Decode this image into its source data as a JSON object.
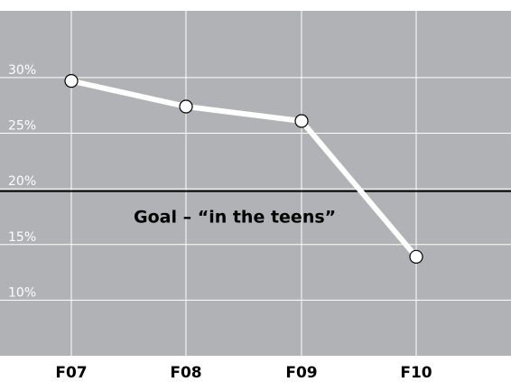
{
  "chart_data": {
    "type": "line",
    "categories": [
      "F07",
      "F08",
      "F09",
      "F10"
    ],
    "series": [
      {
        "values": [
          29.7,
          27.4,
          26.1,
          13.9
        ]
      }
    ],
    "ylim": [
      5,
      36
    ],
    "yticks": [
      {
        "value": 30,
        "label": "30%"
      },
      {
        "value": 25,
        "label": "25%"
      },
      {
        "value": 20,
        "label": "20%"
      },
      {
        "value": 15,
        "label": "15%"
      },
      {
        "value": 10,
        "label": "10%"
      }
    ],
    "reference_line": {
      "value": 19.8,
      "label": "Goal – “in the teens”"
    },
    "grid": true,
    "colors": {
      "plot_background": "#b1b2b5",
      "gridline": "#ffffff",
      "line": "#ffffff",
      "marker_fill": "#ffffff",
      "marker_stroke": "#000000",
      "reference_line": "#000000"
    }
  }
}
